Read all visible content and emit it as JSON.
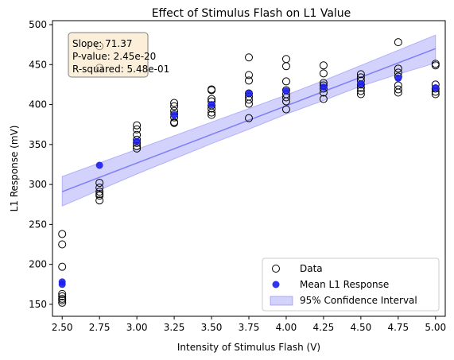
{
  "chart_data": {
    "type": "scatter",
    "title": "Effect of Stimulus Flash on L1 Value",
    "xlabel": "Intensity of Stimulus Flash (V)",
    "ylabel": "L1 Response (mV)",
    "xlim": [
      2.435,
      5.065
    ],
    "ylim": [
      135,
      505
    ],
    "xticks": [
      2.5,
      2.75,
      3.0,
      3.25,
      3.5,
      3.75,
      4.0,
      4.25,
      4.5,
      4.75,
      5.0
    ],
    "xtick_labels": [
      "2.50",
      "2.75",
      "3.00",
      "3.25",
      "3.50",
      "3.75",
      "4.00",
      "4.25",
      "4.50",
      "4.75",
      "5.00"
    ],
    "yticks": [
      150,
      200,
      250,
      300,
      350,
      400,
      450,
      500
    ],
    "ytick_labels": [
      "150",
      "200",
      "250",
      "300",
      "350",
      "400",
      "450",
      "500"
    ],
    "grid": false,
    "legend_position": "bottom-right",
    "stats_box": [
      "Slope: 71.37",
      "P-value: 2.45e-20",
      "R-squared: 5.48e-01"
    ],
    "series": [
      {
        "name": "Data",
        "kind": "scatter-hollow",
        "color": "#000000",
        "points": [
          [
            2.5,
            238
          ],
          [
            2.5,
            225
          ],
          [
            2.5,
            197
          ],
          [
            2.5,
            163
          ],
          [
            2.5,
            160
          ],
          [
            2.5,
            157
          ],
          [
            2.5,
            155
          ],
          [
            2.5,
            152
          ],
          [
            2.75,
            473
          ],
          [
            2.75,
            446
          ],
          [
            2.75,
            302
          ],
          [
            2.75,
            296
          ],
          [
            2.75,
            291
          ],
          [
            2.75,
            288
          ],
          [
            2.75,
            286
          ],
          [
            2.75,
            280
          ],
          [
            3.0,
            374
          ],
          [
            3.0,
            369
          ],
          [
            3.0,
            362
          ],
          [
            3.0,
            356
          ],
          [
            3.0,
            352
          ],
          [
            3.0,
            348
          ],
          [
            3.0,
            345
          ],
          [
            3.25,
            402
          ],
          [
            3.25,
            398
          ],
          [
            3.25,
            392
          ],
          [
            3.25,
            388
          ],
          [
            3.25,
            384
          ],
          [
            3.25,
            378
          ],
          [
            3.25,
            377
          ],
          [
            3.5,
            419
          ],
          [
            3.5,
            418
          ],
          [
            3.5,
            407
          ],
          [
            3.5,
            404
          ],
          [
            3.5,
            399
          ],
          [
            3.5,
            395
          ],
          [
            3.5,
            390
          ],
          [
            3.5,
            387
          ],
          [
            3.75,
            459
          ],
          [
            3.75,
            437
          ],
          [
            3.75,
            430
          ],
          [
            3.75,
            414
          ],
          [
            3.75,
            410
          ],
          [
            3.75,
            406
          ],
          [
            3.75,
            401
          ],
          [
            3.75,
            383
          ],
          [
            4.0,
            457
          ],
          [
            4.0,
            448
          ],
          [
            4.0,
            429
          ],
          [
            4.0,
            418
          ],
          [
            4.0,
            413
          ],
          [
            4.0,
            409
          ],
          [
            4.0,
            404
          ],
          [
            4.0,
            394
          ],
          [
            4.25,
            449
          ],
          [
            4.25,
            439
          ],
          [
            4.25,
            427
          ],
          [
            4.25,
            424
          ],
          [
            4.25,
            420
          ],
          [
            4.25,
            415
          ],
          [
            4.25,
            407
          ],
          [
            4.5,
            438
          ],
          [
            4.5,
            434
          ],
          [
            4.5,
            430
          ],
          [
            4.5,
            425
          ],
          [
            4.5,
            421
          ],
          [
            4.5,
            417
          ],
          [
            4.5,
            413
          ],
          [
            4.75,
            478
          ],
          [
            4.75,
            445
          ],
          [
            4.75,
            440
          ],
          [
            4.75,
            435
          ],
          [
            4.75,
            424
          ],
          [
            4.75,
            419
          ],
          [
            4.75,
            415
          ],
          [
            5.0,
            451
          ],
          [
            5.0,
            449
          ],
          [
            5.0,
            425
          ],
          [
            5.0,
            420
          ],
          [
            5.0,
            416
          ],
          [
            5.0,
            413
          ]
        ]
      },
      {
        "name": "Mean L1 Response",
        "kind": "scatter-filled",
        "color": "#1c1cf0",
        "points": [
          [
            2.5,
            178
          ],
          [
            2.5,
            175
          ],
          [
            2.75,
            324
          ],
          [
            3.0,
            354
          ],
          [
            3.25,
            387
          ],
          [
            3.5,
            400
          ],
          [
            3.75,
            414
          ],
          [
            4.0,
            417
          ],
          [
            4.25,
            422
          ],
          [
            4.5,
            426
          ],
          [
            4.75,
            433
          ],
          [
            5.0,
            421
          ]
        ]
      },
      {
        "name": "95% Confidence Interval",
        "kind": "band",
        "color": "#6a6af5",
        "fit_line": [
          [
            2.5,
            291
          ],
          [
            5.0,
            470
          ]
        ],
        "lower": [
          [
            2.5,
            273
          ],
          [
            2.75,
            293
          ],
          [
            3.0,
            313
          ],
          [
            3.25,
            332
          ],
          [
            3.5,
            351
          ],
          [
            3.75,
            369
          ],
          [
            4.0,
            388
          ],
          [
            4.25,
            405
          ],
          [
            4.5,
            423
          ],
          [
            4.75,
            438
          ],
          [
            5.0,
            452
          ]
        ],
        "upper": [
          [
            2.5,
            310
          ],
          [
            2.75,
            327
          ],
          [
            3.0,
            344
          ],
          [
            3.25,
            361
          ],
          [
            3.5,
            378
          ],
          [
            3.75,
            395
          ],
          [
            4.0,
            412
          ],
          [
            4.25,
            430
          ],
          [
            4.5,
            449
          ],
          [
            4.75,
            468
          ],
          [
            5.0,
            487
          ]
        ]
      }
    ]
  }
}
